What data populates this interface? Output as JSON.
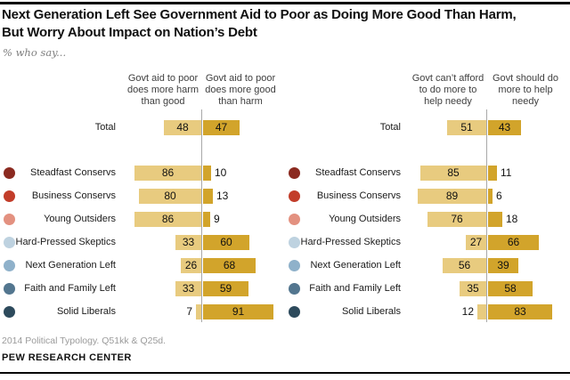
{
  "header": {
    "title_line1": "Next Generation Left See Government Aid to Poor as Doing More Good Than Harm,",
    "title_line2": "But Worry About Impact on Nation’s Debt",
    "subtitle": "% who say..."
  },
  "footer": {
    "source": "2014 Political Typology. Q51kk & Q25d.",
    "brand": "PEW RESEARCH CENTER"
  },
  "colors": {
    "bar_light": "#e8cb7f",
    "bar_dark": "#d2a42b",
    "axis_line": "#a9a9a9",
    "dot_colors_by_row": [
      "",
      "#8b2a20",
      "#c23d2a",
      "#e39180",
      "#bed2e0",
      "#8fb1ca",
      "#53768f",
      "#2d4a5c"
    ]
  },
  "chart_data": [
    {
      "type": "bar",
      "orientation": "diverging-horizontal",
      "title": "Govt aid to poor: harm vs good",
      "columns": [
        [
          "Govt aid to poor",
          "does more harm",
          "than good"
        ],
        [
          "Govt aid to poor",
          "does more good",
          "than harm"
        ]
      ],
      "categories": [
        "Total",
        "Steadfast Conservs",
        "Business Conservs",
        "Young Outsiders",
        "Hard-Pressed Skeptics",
        "Next Generation Left",
        "Faith and Family Left",
        "Solid Liberals"
      ],
      "series": [
        {
          "name": "Govt aid to poor does more harm than good",
          "values": [
            48,
            86,
            80,
            86,
            33,
            26,
            33,
            7
          ]
        },
        {
          "name": "Govt aid to poor does more good than harm",
          "values": [
            47,
            10,
            13,
            9,
            60,
            68,
            59,
            91
          ]
        }
      ],
      "xlim": [
        0,
        100
      ],
      "grid": false,
      "legend_position": "column-headers"
    },
    {
      "type": "bar",
      "orientation": "diverging-horizontal",
      "title": "Govt help for needy: can't afford vs should do more",
      "columns": [
        [
          "Govt can’t afford",
          "to do more to",
          "help needy"
        ],
        [
          "Govt should do",
          "more to help",
          "needy"
        ]
      ],
      "categories": [
        "Total",
        "Steadfast Conservs",
        "Business Conservs",
        "Young Outsiders",
        "Hard-Pressed Skeptics",
        "Next Generation Left",
        "Faith and Family Left",
        "Solid Liberals"
      ],
      "series": [
        {
          "name": "Govt can't afford to do more to help needy",
          "values": [
            51,
            85,
            89,
            76,
            27,
            56,
            35,
            12
          ]
        },
        {
          "name": "Govt should do more to help needy",
          "values": [
            43,
            11,
            6,
            18,
            66,
            39,
            58,
            83
          ]
        }
      ],
      "xlim": [
        0,
        100
      ],
      "grid": false,
      "legend_position": "column-headers"
    }
  ]
}
